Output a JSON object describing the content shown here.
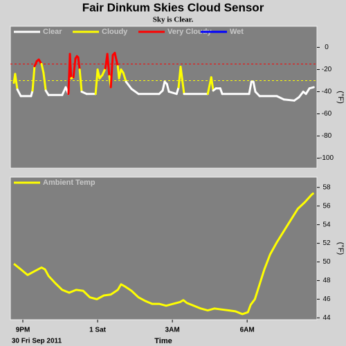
{
  "chart_data": [
    {
      "type": "line",
      "title": "Fair Dinkum Skies Cloud Sensor",
      "subtitle": "Sky is Clear.",
      "ylabel": "(°F)",
      "xlim": [
        20.5,
        32.8
      ],
      "ylim": [
        -109,
        19
      ],
      "yticks": [
        0,
        -20,
        -40,
        -60,
        -80,
        -100
      ],
      "legend": [
        {
          "name": "Clear",
          "color": "#ffffff"
        },
        {
          "name": "Cloudy",
          "color": "#ffff00"
        },
        {
          "name": "Very Cloudy",
          "color": "#ff0000"
        },
        {
          "name": "Wet",
          "color": "#0000ff"
        }
      ],
      "thresholds": [
        {
          "value": -30,
          "color": "#ffff00"
        },
        {
          "value": -15,
          "color": "#ff0000"
        }
      ],
      "x": [
        20.64,
        20.69,
        20.78,
        20.92,
        21.33,
        21.39,
        21.47,
        21.56,
        21.64,
        21.75,
        21.83,
        21.92,
        22.03,
        22.58,
        22.72,
        22.83,
        22.89,
        22.94,
        23.03,
        23.11,
        23.17,
        23.22,
        23.28,
        23.36,
        23.56,
        23.92,
        24.0,
        24.08,
        24.19,
        24.31,
        24.39,
        24.47,
        24.53,
        24.61,
        24.69,
        24.75,
        24.81,
        24.86,
        24.94,
        25.03,
        25.14,
        25.36,
        25.64,
        26.47,
        26.61,
        26.69,
        26.78,
        26.86,
        27.17,
        27.25,
        27.33,
        27.39,
        27.47,
        28.42,
        28.56,
        28.64,
        28.75,
        28.92,
        29.0,
        30.08,
        30.17,
        30.25,
        30.33,
        30.5,
        31.19,
        31.47,
        31.89,
        32.08,
        32.25,
        32.36,
        32.5,
        32.67
      ],
      "values": [
        -32,
        -24,
        -38,
        -44,
        -44,
        -39,
        -17,
        -12.5,
        -11,
        -15,
        -23,
        -39,
        -43,
        -43,
        -36,
        -42,
        -6,
        -28,
        -27,
        -10,
        -8,
        -9,
        -20,
        -40,
        -42,
        -42,
        -20,
        -28,
        -25,
        -19,
        -6,
        -26,
        -36,
        -7,
        -5,
        -11,
        -17,
        -28,
        -20,
        -23,
        -31,
        -37.5,
        -42,
        -42,
        -39,
        -31,
        -33,
        -40,
        -42,
        -36,
        -17.5,
        -28,
        -42,
        -42,
        -27,
        -39,
        -37,
        -37,
        -42,
        -42,
        -31,
        -31,
        -40,
        -44,
        -44,
        -47,
        -48,
        -45,
        -40,
        -42,
        -37,
        -36
      ]
    },
    {
      "type": "line",
      "ylabel": "(°F)",
      "xlabel": "Time",
      "date": "30 Fri Sep 2011",
      "xlim": [
        20.5,
        32.8
      ],
      "ylim": [
        43.8,
        59.1
      ],
      "yticks": [
        44,
        46,
        48,
        50,
        52,
        54,
        56,
        58
      ],
      "xticks": [
        {
          "value": 21,
          "label": "9PM"
        },
        {
          "value": 24,
          "label": "1 Sat"
        },
        {
          "value": 27,
          "label": "3AM"
        },
        {
          "value": 30,
          "label": "6AM"
        }
      ],
      "x": [
        20.64,
        20.92,
        21.19,
        21.47,
        21.75,
        21.89,
        22.03,
        22.31,
        22.58,
        22.86,
        23.14,
        23.42,
        23.69,
        23.97,
        24.25,
        24.53,
        24.81,
        24.94,
        25.08,
        25.36,
        25.64,
        25.92,
        26.19,
        26.47,
        26.75,
        27.03,
        27.31,
        27.44,
        27.58,
        27.86,
        28.14,
        28.42,
        28.69,
        28.97,
        29.25,
        29.53,
        29.81,
        30.03,
        30.14,
        30.31,
        30.5,
        30.69,
        30.92,
        31.19,
        31.47,
        31.75,
        32.03,
        32.31,
        32.58,
        32.67
      ],
      "series": [
        {
          "name": "Ambient Temp",
          "color": "#ffff00",
          "values": [
            49.8,
            49.2,
            48.6,
            49.0,
            49.4,
            49.2,
            48.5,
            47.7,
            47.0,
            46.7,
            47.0,
            46.9,
            46.2,
            46.0,
            46.4,
            46.5,
            47.0,
            47.6,
            47.4,
            46.9,
            46.2,
            45.8,
            45.5,
            45.5,
            45.3,
            45.5,
            45.7,
            45.9,
            45.6,
            45.3,
            45.0,
            44.8,
            45.0,
            44.9,
            44.8,
            44.7,
            44.4,
            44.6,
            45.4,
            46.0,
            47.6,
            49.2,
            50.8,
            52.1,
            53.3,
            54.5,
            55.7,
            56.4,
            57.2,
            57.4
          ]
        }
      ]
    }
  ]
}
